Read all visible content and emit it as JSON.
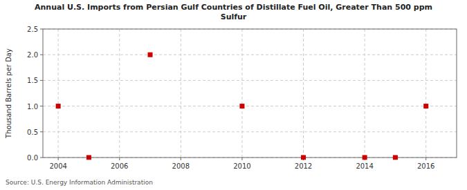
{
  "chart_data": {
    "type": "scatter",
    "title": "Annual U.S. Imports from Persian Gulf Countries of Distillate Fuel Oil, Greater Than 500 ppm\nSulfur",
    "ylabel": "Thousand Barrels per Day",
    "source": "Source: U.S. Energy Information Administration",
    "x": [
      2004,
      2005,
      2007,
      2010,
      2012,
      2014,
      2015,
      2016
    ],
    "values": [
      1.0,
      0.0,
      2.0,
      1.0,
      0.0,
      0.0,
      0.0,
      1.0
    ],
    "color": "#cc0000",
    "marker": "square",
    "xlim": [
      2003.5,
      2017.0
    ],
    "ylim": [
      0.0,
      2.5
    ],
    "xticks": [
      2004,
      2006,
      2008,
      2010,
      2012,
      2014,
      2016
    ],
    "yticks": [
      {
        "value": 0.0,
        "label": "0.0"
      },
      0.5,
      {
        "value": 1.0,
        "label": "1.0"
      },
      1.5,
      {
        "value": 2.0,
        "label": "2.0"
      },
      2.5
    ],
    "grid": true
  }
}
